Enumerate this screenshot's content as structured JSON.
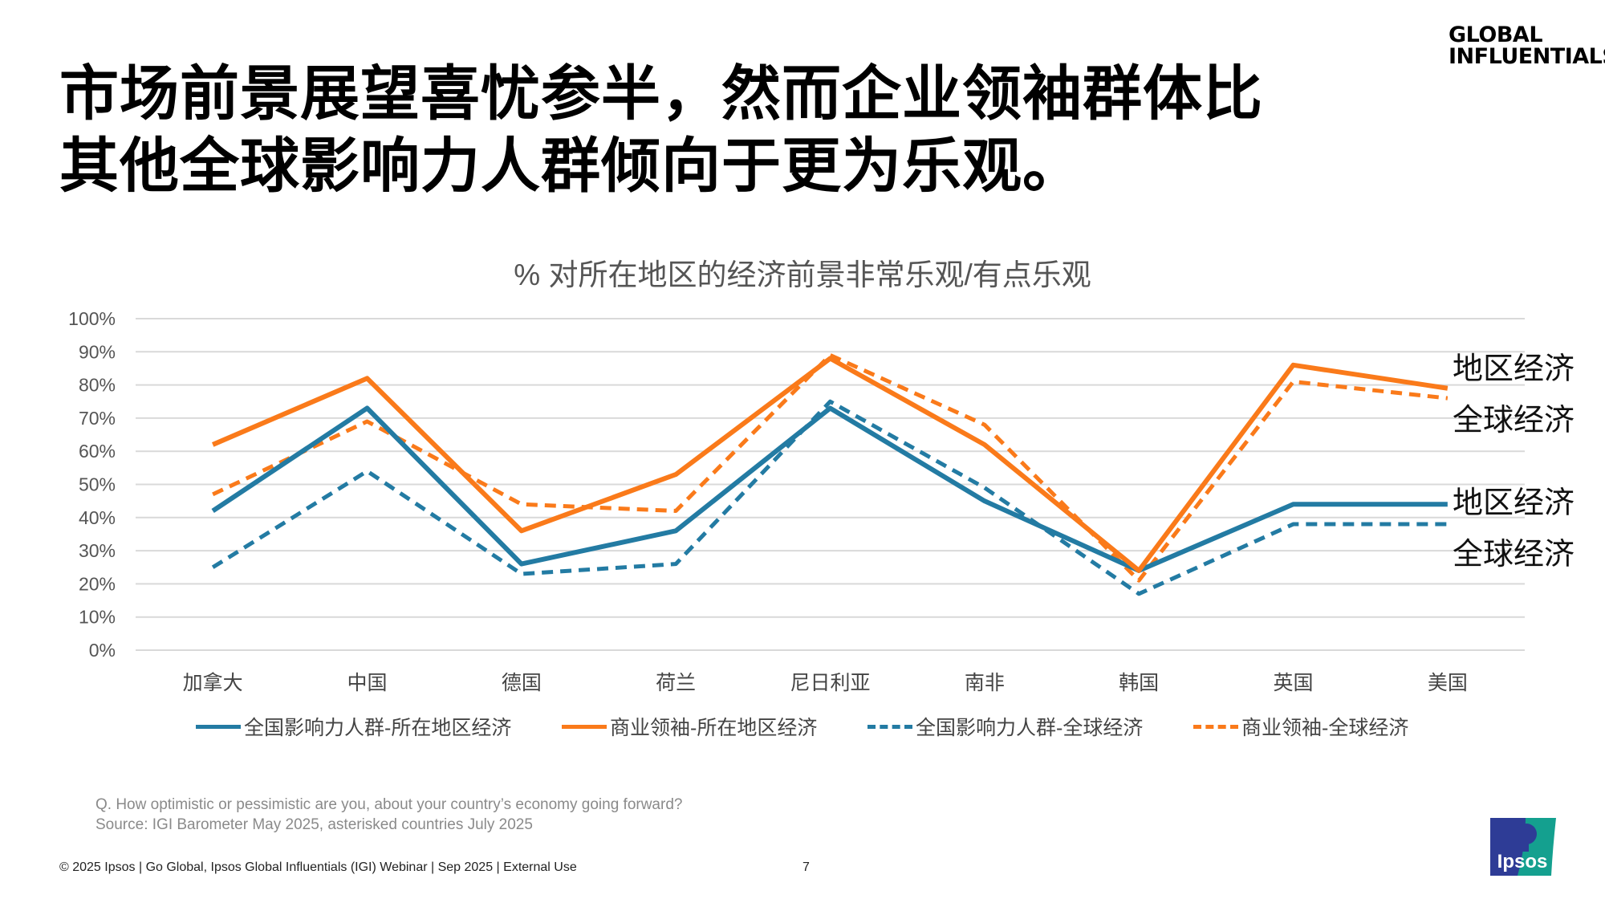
{
  "title": {
    "line1": "市场前景展望喜忧参半，然而企业领袖群体比",
    "line2": "其他全球影响力人群倾向于更为乐观。"
  },
  "brand_logo": {
    "line1": "GLOBAL",
    "line2": "INFLUENTIALS"
  },
  "chart_data": {
    "type": "line",
    "title": "% 对所在地区的经济前景非常乐观/有点乐观",
    "categories": [
      "加拿大",
      "中国",
      "德国",
      "荷兰",
      "尼日利亚",
      "南非",
      "韩国",
      "英国",
      "美国"
    ],
    "ylim": [
      0,
      100
    ],
    "yticks": [
      "0%",
      "10%",
      "20%",
      "30%",
      "40%",
      "50%",
      "60%",
      "70%",
      "80%",
      "90%",
      "100%"
    ],
    "grid": true,
    "legend_position": "bottom",
    "series": [
      {
        "name": "全国影响力人群-所在地区经济",
        "color": "#237ba3",
        "dash": false,
        "values": [
          42,
          73,
          26,
          36,
          73,
          45,
          24,
          44,
          44
        ]
      },
      {
        "name": "商业领袖-所在地区经济",
        "color": "#fa7a1a",
        "dash": false,
        "values": [
          62,
          82,
          36,
          53,
          88,
          62,
          24,
          86,
          79
        ]
      },
      {
        "name": "全国影响力人群-全球经济",
        "color": "#237ba3",
        "dash": true,
        "values": [
          25,
          54,
          23,
          26,
          75,
          49,
          17,
          38,
          38
        ]
      },
      {
        "name": "商业领袖-全球经济",
        "color": "#fa7a1a",
        "dash": true,
        "values": [
          47,
          69,
          44,
          42,
          89,
          68,
          21,
          81,
          76
        ]
      }
    ],
    "annotations": [
      "地区经济",
      "全球经济",
      "地区经济",
      "全球经济"
    ]
  },
  "notes": {
    "question": "Q. How optimistic or pessimistic are you, about your country’s economy going forward?",
    "source": "Source: IGI Barometer May 2025, asterisked countries July 2025"
  },
  "footer": {
    "text": "© 2025 Ipsos | Go Global, Ipsos Global Influentials (IGI) Webinar  | Sep 2025 | External Use",
    "page": "7"
  },
  "ipsos_logo": {
    "text": "Ipsos",
    "colors": [
      "#2e3c96",
      "#14a08f"
    ]
  }
}
